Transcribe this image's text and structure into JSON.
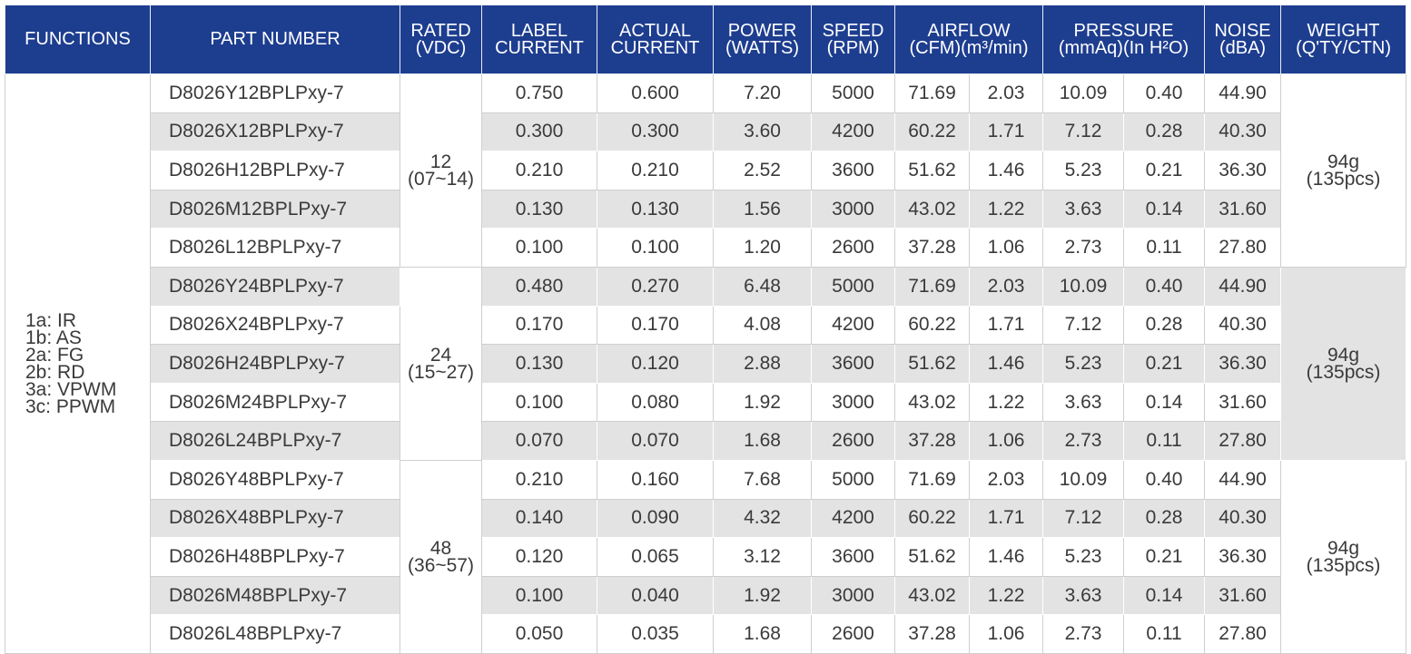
{
  "header": {
    "columns": [
      [
        "FUNCTIONS"
      ],
      [
        "PART NUMBER"
      ],
      [
        "RATED",
        "(VDC)"
      ],
      [
        "LABEL",
        "CURRENT"
      ],
      [
        "ACTUAL",
        "CURRENT"
      ],
      [
        "POWER",
        "(WATTS)"
      ],
      [
        "SPEED",
        "(RPM)"
      ],
      [
        "AIRFLOW",
        "(CFM)(m³/min)"
      ],
      [
        "PRESSURE",
        "(mmAq)(In H²O)"
      ],
      [
        "NOISE",
        "(dBA)"
      ],
      [
        "WEIGHT",
        "(Q'TY/CTN)"
      ]
    ]
  },
  "table": {
    "functions": [
      "1a: IR",
      "1b: AS",
      "2a: FG",
      "2b: RD",
      "3a: VPWM",
      "3c: PPWM"
    ],
    "groups": [
      {
        "rated": [
          "12",
          "(07~14)"
        ],
        "weight": [
          "94g",
          "(135pcs)"
        ],
        "rows": [
          [
            "D8026Y12BPLPxy-7",
            "0.750",
            "0.600",
            "7.20",
            "5000",
            "71.69",
            "2.03",
            "10.09",
            "0.40",
            "44.90"
          ],
          [
            "D8026X12BPLPxy-7",
            "0.300",
            "0.300",
            "3.60",
            "4200",
            "60.22",
            "1.71",
            "7.12",
            "0.28",
            "40.30"
          ],
          [
            "D8026H12BPLPxy-7",
            "0.210",
            "0.210",
            "2.52",
            "3600",
            "51.62",
            "1.46",
            "5.23",
            "0.21",
            "36.30"
          ],
          [
            "D8026M12BPLPxy-7",
            "0.130",
            "0.130",
            "1.56",
            "3000",
            "43.02",
            "1.22",
            "3.63",
            "0.14",
            "31.60"
          ],
          [
            "D8026L12BPLPxy-7",
            "0.100",
            "0.100",
            "1.20",
            "2600",
            "37.28",
            "1.06",
            "2.73",
            "0.11",
            "27.80"
          ]
        ]
      },
      {
        "rated": [
          "24",
          "(15~27)"
        ],
        "weight": [
          "94g",
          "(135pcs)"
        ],
        "rows": [
          [
            "D8026Y24BPLPxy-7",
            "0.480",
            "0.270",
            "6.48",
            "5000",
            "71.69",
            "2.03",
            "10.09",
            "0.40",
            "44.90"
          ],
          [
            "D8026X24BPLPxy-7",
            "0.170",
            "0.170",
            "4.08",
            "4200",
            "60.22",
            "1.71",
            "7.12",
            "0.28",
            "40.30"
          ],
          [
            "D8026H24BPLPxy-7",
            "0.130",
            "0.120",
            "2.88",
            "3600",
            "51.62",
            "1.46",
            "5.23",
            "0.21",
            "36.30"
          ],
          [
            "D8026M24BPLPxy-7",
            "0.100",
            "0.080",
            "1.92",
            "3000",
            "43.02",
            "1.22",
            "3.63",
            "0.14",
            "31.60"
          ],
          [
            "D8026L24BPLPxy-7",
            "0.070",
            "0.070",
            "1.68",
            "2600",
            "37.28",
            "1.06",
            "2.73",
            "0.11",
            "27.80"
          ]
        ]
      },
      {
        "rated": [
          "48",
          "(36~57)"
        ],
        "weight": [
          "94g",
          "(135pcs)"
        ],
        "rows": [
          [
            "D8026Y48BPLPxy-7",
            "0.210",
            "0.160",
            "7.68",
            "5000",
            "71.69",
            "2.03",
            "10.09",
            "0.40",
            "44.90"
          ],
          [
            "D8026X48BPLPxy-7",
            "0.140",
            "0.090",
            "4.32",
            "4200",
            "60.22",
            "1.71",
            "7.12",
            "0.28",
            "40.30"
          ],
          [
            "D8026H48BPLPxy-7",
            "0.120",
            "0.065",
            "3.12",
            "3600",
            "51.62",
            "1.46",
            "5.23",
            "0.21",
            "36.30"
          ],
          [
            "D8026M48BPLPxy-7",
            "0.100",
            "0.040",
            "1.92",
            "3000",
            "43.02",
            "1.22",
            "3.63",
            "0.14",
            "31.60"
          ],
          [
            "D8026L48BPLPxy-7",
            "0.050",
            "0.035",
            "1.68",
            "2600",
            "37.28",
            "1.06",
            "2.73",
            "0.11",
            "27.80"
          ]
        ]
      }
    ]
  }
}
